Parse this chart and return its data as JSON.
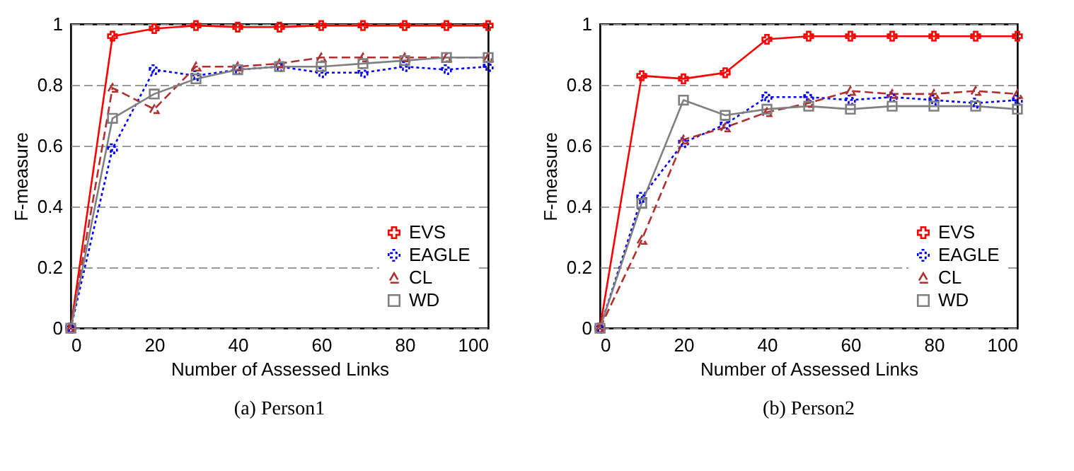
{
  "chart_data": [
    {
      "type": "line",
      "title": "(a)  Person1",
      "xlabel": "Number of Assessed Links",
      "ylabel": "F-measure",
      "x": [
        0,
        10,
        20,
        30,
        40,
        50,
        60,
        70,
        80,
        90,
        100
      ],
      "xlim": [
        0,
        100
      ],
      "xticks": [
        0,
        20,
        40,
        60,
        80,
        100
      ],
      "ylim": [
        0,
        1
      ],
      "yticks": [
        0,
        0.2,
        0.4,
        0.6,
        0.8,
        1
      ],
      "grid": "y",
      "legend": "bottom right",
      "series": [
        {
          "name": "EVS",
          "color": "#ff0000",
          "marker": "cross",
          "line_style": "solid",
          "values": [
            0,
            0.96,
            0.985,
            0.995,
            0.99,
            0.99,
            0.995,
            0.995,
            0.995,
            0.995,
            0.995
          ]
        },
        {
          "name": "EAGLE",
          "color": "#0000ff",
          "marker": "cross",
          "line_style": "dotted",
          "values": [
            0,
            0.59,
            0.85,
            0.83,
            0.85,
            0.86,
            0.84,
            0.84,
            0.86,
            0.85,
            0.86
          ]
        },
        {
          "name": "CL",
          "color": "#b03030",
          "marker": "triangle",
          "line_style": "dashed",
          "values": [
            0,
            0.79,
            0.72,
            0.86,
            0.86,
            0.87,
            0.89,
            0.89,
            0.89,
            0.89,
            0.89
          ]
        },
        {
          "name": "WD",
          "color": "#808080",
          "marker": "square",
          "line_style": "solid",
          "values": [
            0,
            0.69,
            0.77,
            0.82,
            0.85,
            0.86,
            0.86,
            0.87,
            0.88,
            0.89,
            0.89
          ]
        }
      ]
    },
    {
      "type": "line",
      "title": "(b)  Person2",
      "xlabel": "Number of Assessed Links",
      "ylabel": "F-measure",
      "x": [
        0,
        10,
        20,
        30,
        40,
        50,
        60,
        70,
        80,
        90,
        100
      ],
      "xlim": [
        0,
        100
      ],
      "xticks": [
        0,
        20,
        40,
        60,
        80,
        100
      ],
      "ylim": [
        0,
        1
      ],
      "yticks": [
        0,
        0.2,
        0.4,
        0.6,
        0.8,
        1
      ],
      "grid": "y",
      "legend": "bottom right",
      "series": [
        {
          "name": "EVS",
          "color": "#ff0000",
          "marker": "cross",
          "line_style": "solid",
          "values": [
            0,
            0.83,
            0.82,
            0.84,
            0.95,
            0.96,
            0.96,
            0.96,
            0.96,
            0.96,
            0.96
          ]
        },
        {
          "name": "EAGLE",
          "color": "#0000ff",
          "marker": "cross",
          "line_style": "dotted",
          "values": [
            0,
            0.43,
            0.61,
            0.67,
            0.76,
            0.76,
            0.75,
            0.76,
            0.75,
            0.74,
            0.75
          ]
        },
        {
          "name": "CL",
          "color": "#b03030",
          "marker": "triangle",
          "line_style": "dashed",
          "values": [
            0,
            0.29,
            0.62,
            0.66,
            0.71,
            0.74,
            0.78,
            0.77,
            0.77,
            0.78,
            0.77
          ]
        },
        {
          "name": "WD",
          "color": "#808080",
          "marker": "square",
          "line_style": "solid",
          "values": [
            0,
            0.41,
            0.75,
            0.7,
            0.72,
            0.73,
            0.72,
            0.73,
            0.73,
            0.73,
            0.72
          ]
        }
      ]
    }
  ]
}
